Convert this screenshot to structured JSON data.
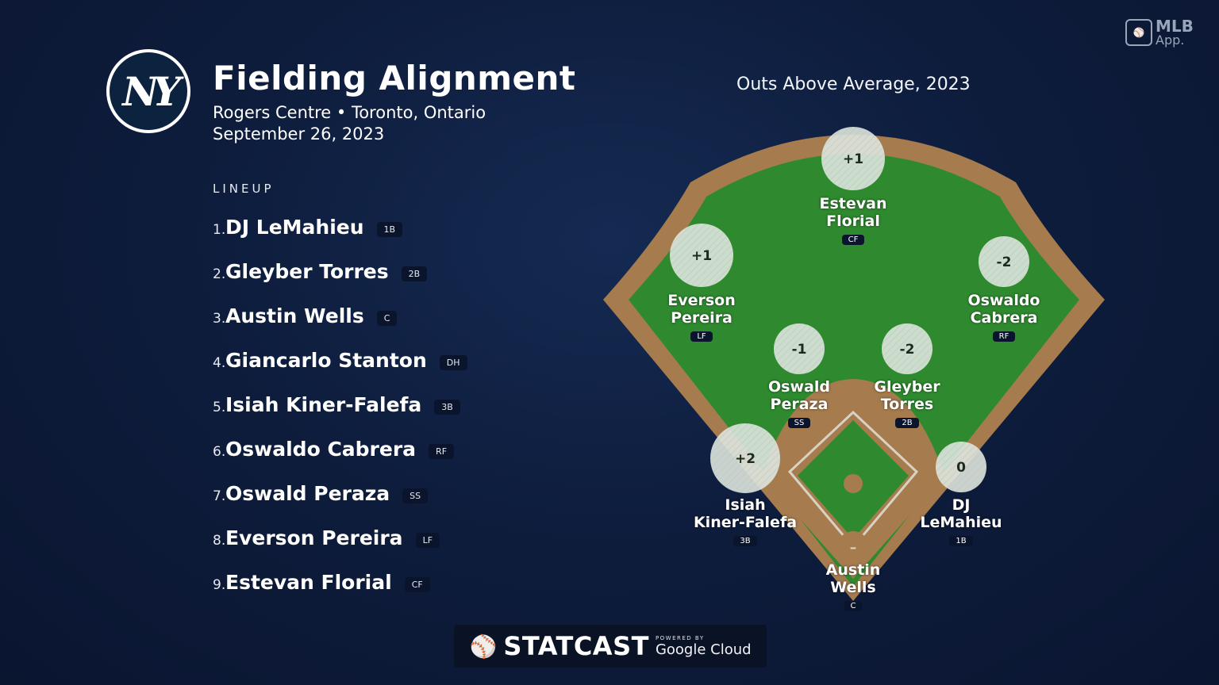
{
  "header": {
    "title": "Fielding Alignment",
    "venue": "Rogers Centre • Toronto, Ontario",
    "date": "September 26, 2023",
    "team_logo_text": "NY"
  },
  "lineup": {
    "heading": "LINEUP",
    "players": [
      {
        "num": "1.",
        "name": "DJ LeMahieu",
        "pos": "1B"
      },
      {
        "num": "2.",
        "name": "Gleyber Torres",
        "pos": "2B"
      },
      {
        "num": "3.",
        "name": "Austin Wells",
        "pos": "C"
      },
      {
        "num": "4.",
        "name": "Giancarlo Stanton",
        "pos": "DH"
      },
      {
        "num": "5.",
        "name": "Isiah Kiner-Falefa",
        "pos": "3B"
      },
      {
        "num": "6.",
        "name": "Oswaldo Cabrera",
        "pos": "RF"
      },
      {
        "num": "7.",
        "name": "Oswald Peraza",
        "pos": "SS"
      },
      {
        "num": "8.",
        "name": "Everson Pereira",
        "pos": "LF"
      },
      {
        "num": "9.",
        "name": "Estevan Florial",
        "pos": "CF"
      }
    ]
  },
  "field": {
    "title": "Outs Above Average, 2023",
    "colors": {
      "grass": "#2f8a2f",
      "dirt": "#a67c4e",
      "marker": "#e6ebe6"
    },
    "fielders": [
      {
        "id": "cf",
        "first": "Estevan",
        "last": "Florial",
        "pos": "CF",
        "oaa": "+1"
      },
      {
        "id": "lf",
        "first": "Everson",
        "last": "Pereira",
        "pos": "LF",
        "oaa": "+1"
      },
      {
        "id": "rf",
        "first": "Oswaldo",
        "last": "Cabrera",
        "pos": "RF",
        "oaa": "-2"
      },
      {
        "id": "ss",
        "first": "Oswald",
        "last": "Peraza",
        "pos": "SS",
        "oaa": "-1"
      },
      {
        "id": "2b",
        "first": "Gleyber",
        "last": "Torres",
        "pos": "2B",
        "oaa": "-2"
      },
      {
        "id": "3b",
        "first": "Isiah",
        "last": "Kiner-Falefa",
        "pos": "3B",
        "oaa": "+2"
      },
      {
        "id": "1b",
        "first": "DJ",
        "last": "LeMahieu",
        "pos": "1B",
        "oaa": "0"
      },
      {
        "id": "c",
        "first": "Austin",
        "last": "Wells",
        "pos": "C",
        "oaa": "–"
      }
    ]
  },
  "branding": {
    "mlb": "MLB",
    "app": "App.",
    "statcast": "STATCAST",
    "powered_by": "POWERED BY",
    "google_cloud": "Google Cloud"
  }
}
